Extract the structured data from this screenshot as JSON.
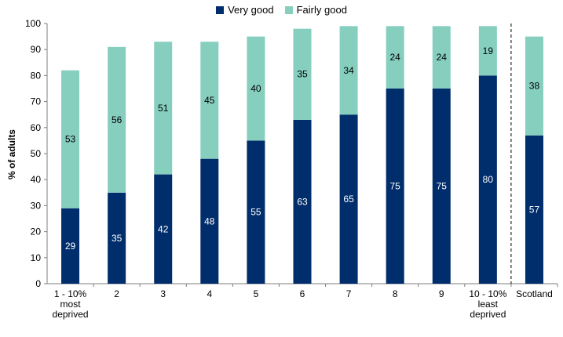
{
  "chart_data": {
    "type": "bar",
    "stacked": true,
    "title": "",
    "xlabel": "",
    "ylabel": "% of adults",
    "ylim": [
      0,
      100
    ],
    "yticks": [
      0,
      10,
      20,
      30,
      40,
      50,
      60,
      70,
      80,
      90,
      100
    ],
    "categories": [
      [
        "1 - 10%",
        "most",
        "deprived"
      ],
      [
        "2"
      ],
      [
        "3"
      ],
      [
        "4"
      ],
      [
        "5"
      ],
      [
        "6"
      ],
      [
        "7"
      ],
      [
        "8"
      ],
      [
        "9"
      ],
      [
        "10 - 10%",
        "least",
        "deprived"
      ],
      [
        "Scotland"
      ]
    ],
    "series": [
      {
        "name": "Very good",
        "color": "#002d6b",
        "values": [
          29,
          35,
          42,
          48,
          55,
          63,
          65,
          75,
          75,
          80,
          57
        ]
      },
      {
        "name": "Fairly good",
        "color": "#86cfbf",
        "values": [
          53,
          56,
          51,
          45,
          40,
          35,
          34,
          24,
          24,
          19,
          38
        ]
      }
    ],
    "separator_before_last": true,
    "legend_position": "top"
  }
}
